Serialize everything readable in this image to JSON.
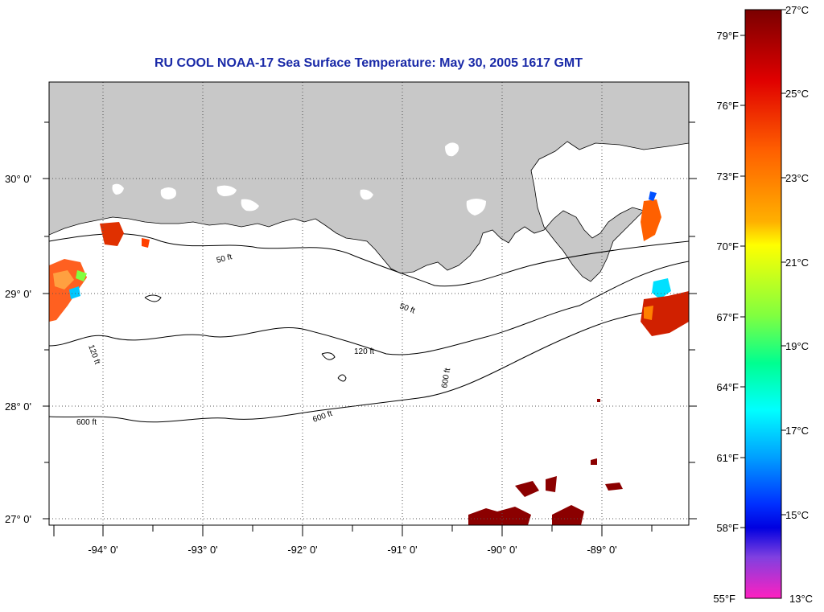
{
  "title": "RU COOL  NOAA-17  Sea Surface Temperature:  May 30, 2005 1617 GMT",
  "map": {
    "lat_labels": [
      "30° 0'",
      "29° 0'",
      "28° 0'",
      "27° 0'"
    ],
    "lon_labels": [
      "-94° 0'",
      "-93° 0'",
      "-92° 0'",
      "-91° 0'",
      "-90° 0'",
      "-89° 0'"
    ],
    "land_color": "#c8c8c8",
    "ocean_color": "#ffffff",
    "isobath_labels": [
      "50 ft",
      "120 ft",
      "600 ft"
    ]
  },
  "colorbar": {
    "fahrenheit": [
      "79°F",
      "76°F",
      "73°F",
      "70°F",
      "67°F",
      "64°F",
      "61°F",
      "58°F",
      "55°F"
    ],
    "celsius": [
      "27°C",
      "25°C",
      "23°C",
      "21°C",
      "19°C",
      "17°C",
      "15°C",
      "13°C"
    ],
    "colors": [
      "#8b0000",
      "#ff0000",
      "#ff8000",
      "#ffff00",
      "#00ff80",
      "#00ffff",
      "#0080ff",
      "#0000ff",
      "#8000ff",
      "#ff33cc"
    ]
  }
}
